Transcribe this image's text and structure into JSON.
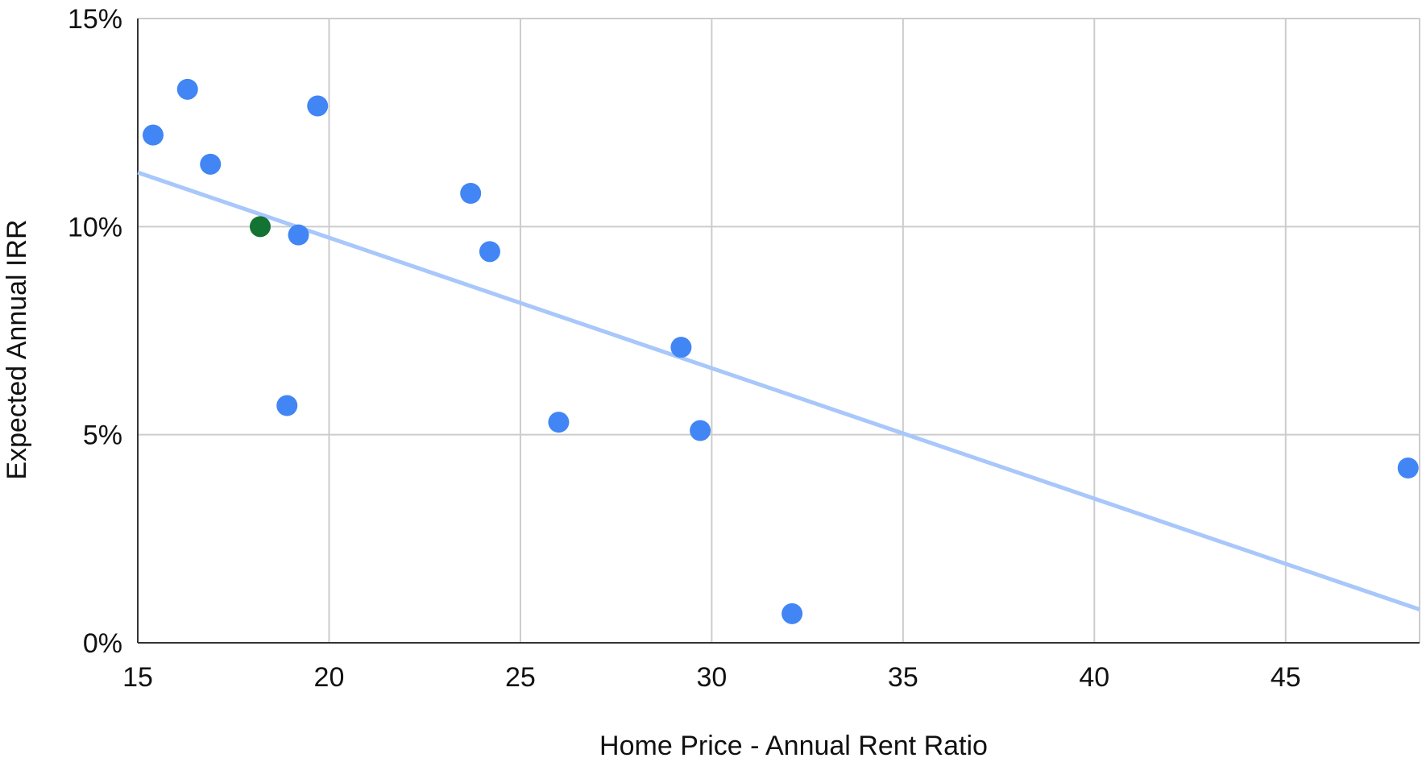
{
  "chart_data": {
    "type": "scatter",
    "title": "",
    "xlabel": "Home Price - Annual Rent Ratio",
    "ylabel": "Expected Annual IRR",
    "xlim": [
      15,
      48.5
    ],
    "ylim": [
      0,
      15
    ],
    "x_ticks": [
      15,
      20,
      25,
      30,
      35,
      40,
      45
    ],
    "x_tick_labels": [
      "15",
      "20",
      "25",
      "30",
      "35",
      "40",
      "45"
    ],
    "y_ticks": [
      0,
      5,
      10,
      15
    ],
    "y_tick_labels": [
      "0%",
      "5%",
      "10%",
      "15%"
    ],
    "grid": true,
    "legend": "none",
    "series": [
      {
        "color": "#4285F4",
        "points": [
          {
            "x": 15.4,
            "y": 12.2
          },
          {
            "x": 16.3,
            "y": 13.3
          },
          {
            "x": 16.9,
            "y": 11.5
          },
          {
            "x": 19.7,
            "y": 12.9
          },
          {
            "x": 19.2,
            "y": 9.8
          },
          {
            "x": 18.9,
            "y": 5.7
          },
          {
            "x": 23.7,
            "y": 10.8
          },
          {
            "x": 24.2,
            "y": 9.4
          },
          {
            "x": 26.0,
            "y": 5.3
          },
          {
            "x": 29.2,
            "y": 7.1
          },
          {
            "x": 29.7,
            "y": 5.1
          },
          {
            "x": 32.1,
            "y": 0.7
          },
          {
            "x": 48.2,
            "y": 4.2
          }
        ]
      },
      {
        "color": "#137333",
        "points": [
          {
            "x": 18.2,
            "y": 10.0
          }
        ]
      }
    ],
    "trendline": {
      "color": "#A8C7FA",
      "x": [
        15,
        48.5
      ],
      "y": [
        11.3,
        0.8
      ]
    }
  }
}
